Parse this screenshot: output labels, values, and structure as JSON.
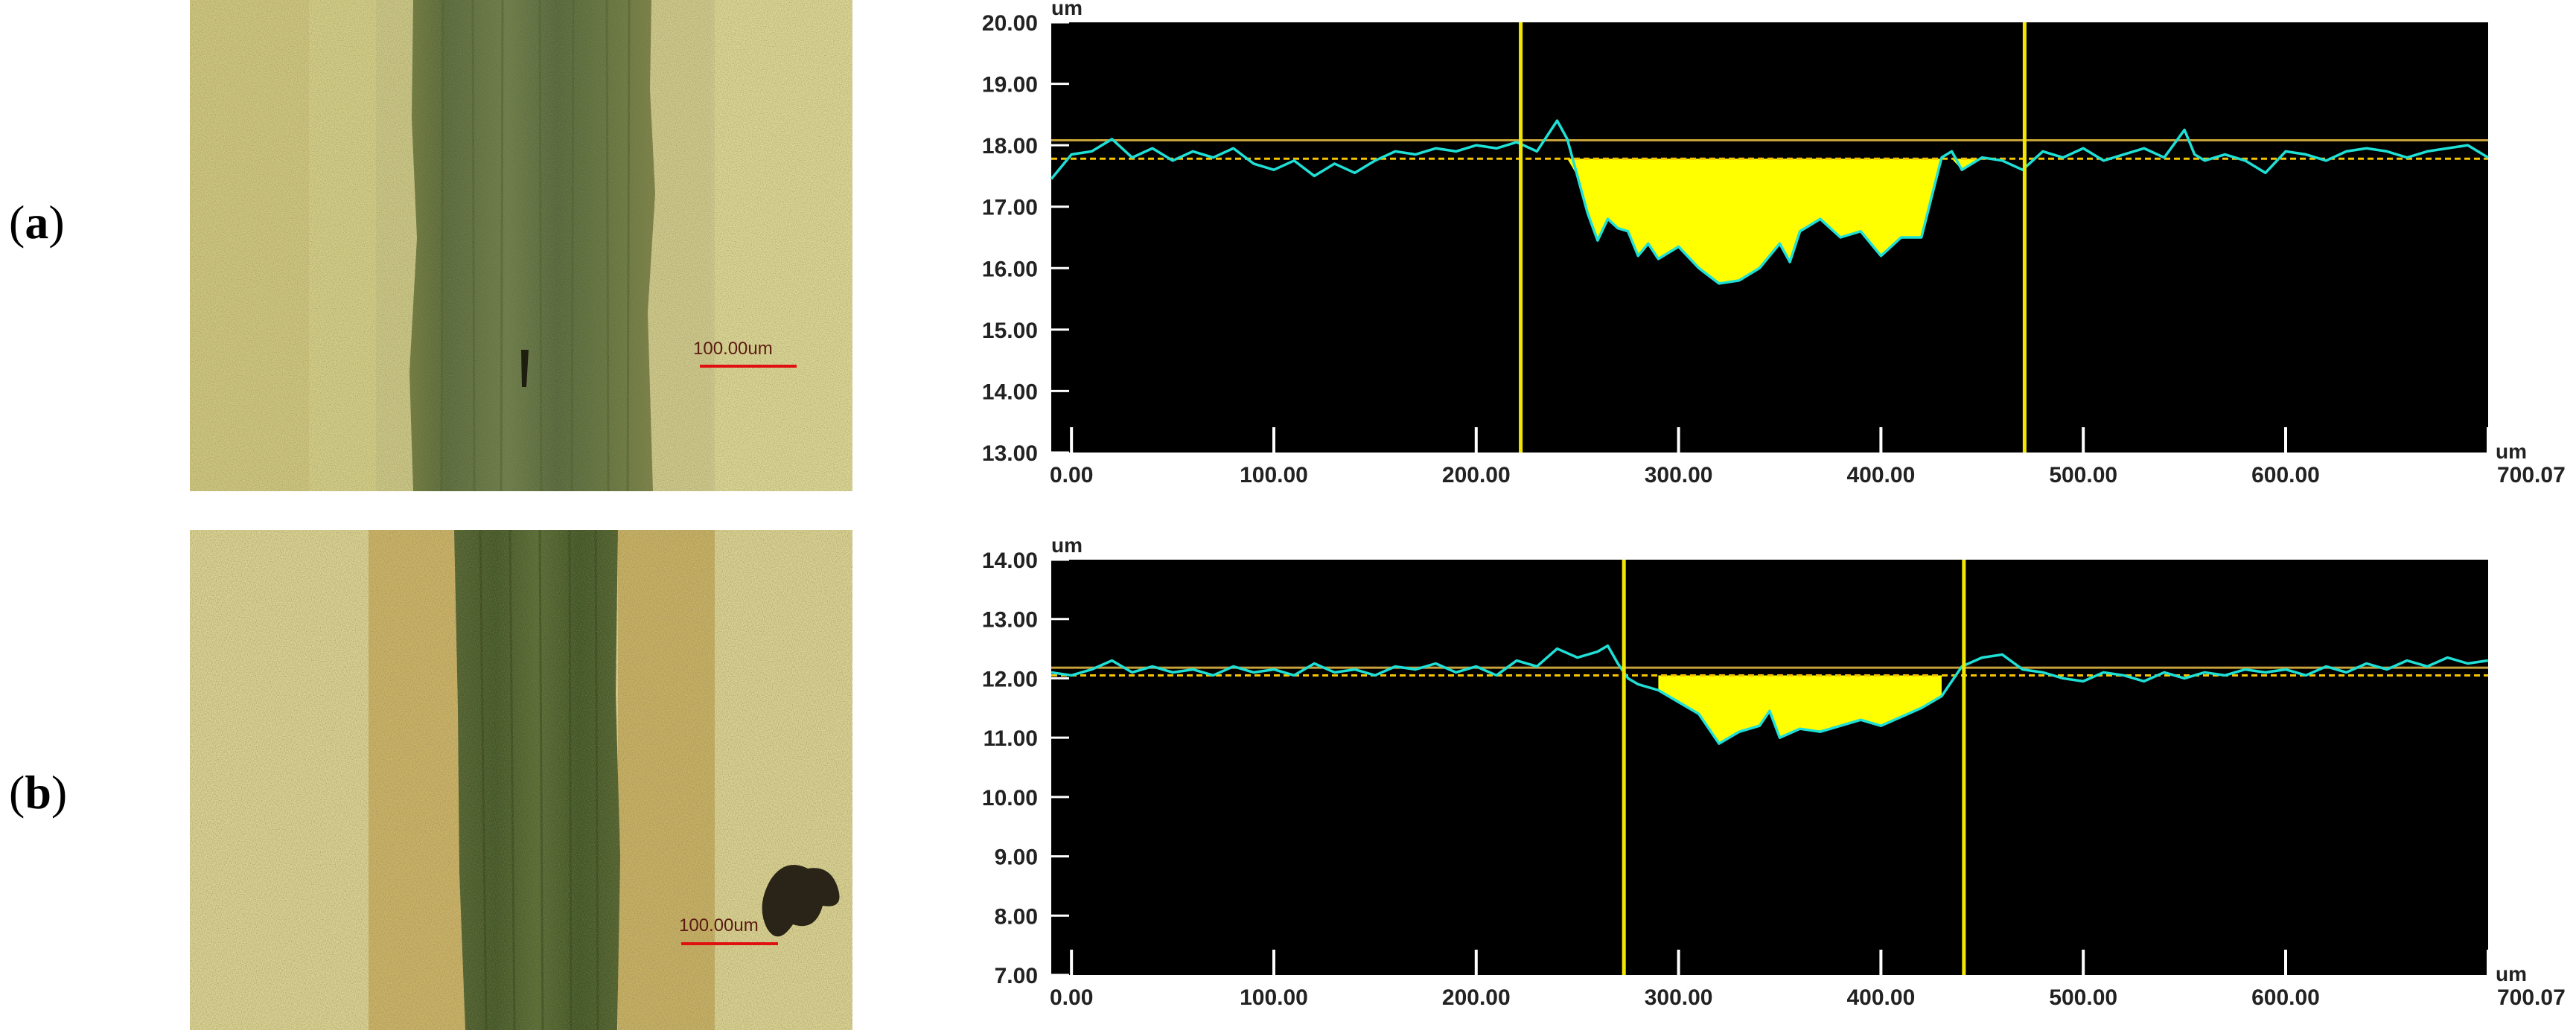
{
  "panels": [
    {
      "label_open": "(",
      "label_letter": "a",
      "label_close": ")",
      "scale_bar_text": "100.00um",
      "chart_data": {
        "type": "line",
        "x_unit": "um",
        "y_unit": "um",
        "xlim": [
          -10,
          700.07
        ],
        "ylim": [
          13.0,
          20.0
        ],
        "x_ticks": [
          0,
          100,
          200,
          300,
          400,
          500,
          600
        ],
        "x_tick_labels": [
          "0.00",
          "100.00",
          "200.00",
          "300.00",
          "400.00",
          "500.00",
          "600.00"
        ],
        "x_end_label": "700.07",
        "y_ticks": [
          20,
          19,
          18,
          17,
          16,
          15,
          14,
          13
        ],
        "y_tick_labels": [
          "20.00",
          "19.00",
          "18.00",
          "17.00",
          "16.00",
          "15.00",
          "14.00",
          "13.00"
        ],
        "reference_line": 18.08,
        "baseline": 17.78,
        "cursor_lines": [
          222,
          471
        ],
        "profile": {
          "x": [
            -10,
            0,
            10,
            20,
            30,
            40,
            50,
            60,
            70,
            80,
            90,
            100,
            110,
            120,
            130,
            140,
            150,
            160,
            170,
            180,
            190,
            200,
            210,
            220,
            230,
            240,
            245,
            250,
            255,
            260,
            265,
            270,
            275,
            280,
            285,
            290,
            300,
            310,
            320,
            330,
            340,
            350,
            355,
            360,
            370,
            380,
            390,
            400,
            410,
            420,
            430,
            435,
            440,
            450,
            460,
            470,
            480,
            490,
            500,
            510,
            520,
            530,
            540,
            550,
            555,
            560,
            570,
            580,
            590,
            600,
            610,
            620,
            630,
            640,
            650,
            660,
            670,
            680,
            690,
            700
          ],
          "y": [
            17.45,
            17.85,
            17.9,
            18.1,
            17.8,
            17.95,
            17.75,
            17.9,
            17.8,
            17.95,
            17.7,
            17.6,
            17.75,
            17.5,
            17.7,
            17.55,
            17.75,
            17.9,
            17.85,
            17.95,
            17.9,
            18.0,
            17.95,
            18.05,
            17.9,
            18.4,
            18.1,
            17.5,
            16.9,
            16.45,
            16.8,
            16.65,
            16.6,
            16.2,
            16.4,
            16.15,
            16.35,
            16.0,
            15.75,
            15.8,
            16.0,
            16.4,
            16.1,
            16.6,
            16.8,
            16.5,
            16.6,
            16.2,
            16.5,
            16.5,
            17.8,
            17.9,
            17.6,
            17.8,
            17.75,
            17.6,
            17.9,
            17.8,
            17.95,
            17.75,
            17.85,
            17.95,
            17.8,
            18.25,
            17.85,
            17.75,
            17.85,
            17.75,
            17.55,
            17.9,
            17.85,
            17.75,
            17.9,
            17.95,
            17.9,
            17.8,
            17.9,
            17.95,
            18.0,
            17.8
          ]
        }
      }
    },
    {
      "label_open": "(",
      "label_letter": "b",
      "label_close": ")",
      "scale_bar_text": "100.00um",
      "chart_data": {
        "type": "line",
        "x_unit": "um",
        "y_unit": "um",
        "xlim": [
          -10,
          700.07
        ],
        "ylim": [
          7.0,
          14.0
        ],
        "x_ticks": [
          0,
          100,
          200,
          300,
          400,
          500,
          600
        ],
        "x_tick_labels": [
          "0.00",
          "100.00",
          "200.00",
          "300.00",
          "400.00",
          "500.00",
          "600.00"
        ],
        "x_end_label": "700.07",
        "y_ticks": [
          14,
          13,
          12,
          11,
          10,
          9,
          8,
          7
        ],
        "y_tick_labels": [
          "14.00",
          "13.00",
          "12.00",
          "11.00",
          "10.00",
          "9.00",
          "8.00",
          "7.00"
        ],
        "reference_line": 12.18,
        "baseline": 12.05,
        "cursor_lines": [
          273,
          441
        ],
        "profile": {
          "x": [
            -10,
            0,
            10,
            20,
            30,
            40,
            50,
            60,
            70,
            80,
            90,
            100,
            110,
            120,
            130,
            140,
            150,
            160,
            170,
            180,
            190,
            200,
            210,
            220,
            230,
            240,
            250,
            260,
            265,
            270,
            275,
            280,
            290,
            300,
            310,
            320,
            330,
            340,
            345,
            350,
            360,
            370,
            380,
            390,
            400,
            410,
            420,
            430,
            440,
            450,
            460,
            470,
            480,
            490,
            500,
            510,
            520,
            530,
            540,
            550,
            560,
            570,
            580,
            590,
            600,
            610,
            620,
            630,
            640,
            650,
            660,
            670,
            680,
            690,
            700
          ],
          "y": [
            12.1,
            12.05,
            12.15,
            12.3,
            12.1,
            12.2,
            12.1,
            12.15,
            12.05,
            12.2,
            12.1,
            12.15,
            12.05,
            12.25,
            12.1,
            12.15,
            12.05,
            12.2,
            12.15,
            12.25,
            12.1,
            12.2,
            12.05,
            12.3,
            12.2,
            12.5,
            12.35,
            12.45,
            12.55,
            12.25,
            12.0,
            11.9,
            11.8,
            11.6,
            11.4,
            10.9,
            11.1,
            11.2,
            11.45,
            11.0,
            11.15,
            11.1,
            11.2,
            11.3,
            11.2,
            11.35,
            11.5,
            11.7,
            12.2,
            12.35,
            12.4,
            12.15,
            12.1,
            12.0,
            11.95,
            12.1,
            12.05,
            11.95,
            12.1,
            12.0,
            12.1,
            12.05,
            12.15,
            12.1,
            12.15,
            12.05,
            12.2,
            12.1,
            12.25,
            12.15,
            12.3,
            12.2,
            12.35,
            12.25,
            12.3
          ]
        }
      }
    }
  ],
  "colors": {
    "plot_background": "#000000",
    "profile_line": "#1fe0d6",
    "fill_area": "#ffff00",
    "cursor": "#f2e600",
    "reference_line": "#c8a23a",
    "baseline_dashed": "#f5c400",
    "tick_marks": "#ffffff",
    "micrograph_base": "#d9d28a",
    "wear_track": "#5f7038",
    "scale_bar": "#e01010"
  }
}
